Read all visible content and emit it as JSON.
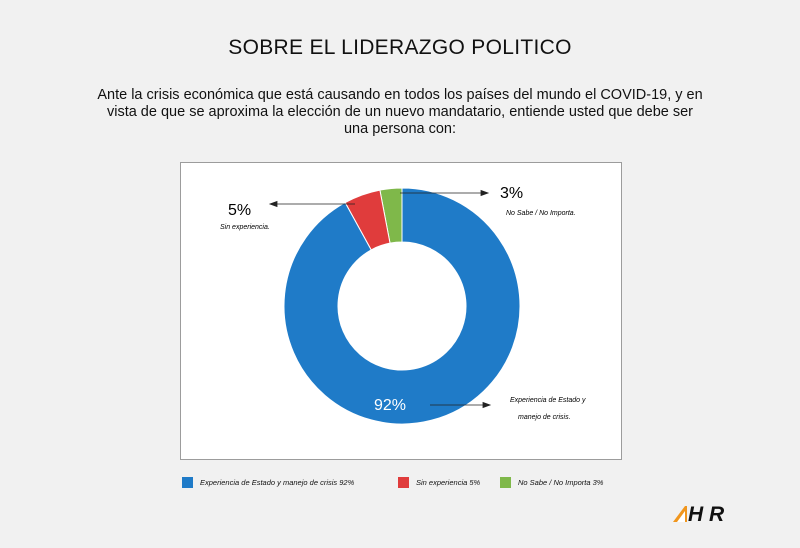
{
  "title": "SOBRE EL LIDERAZGO POLITICO",
  "question_lines": [
    "Ante la crisis económica que está causando en todos los países del  mundo el COVID-19,  y en",
    "vista de que se aproxima la elección de un  nuevo mandatario, entiende usted que debe ser",
    "una persona con:"
  ],
  "logo_text": "H R",
  "chart_data": {
    "type": "pie",
    "donut": true,
    "categories": [
      "Experiencia de Estado y manejo de crisis",
      "Sin experiencia",
      "No Sabe / No Importa"
    ],
    "values": [
      92,
      5,
      3
    ],
    "colors": [
      "#1f7bc8",
      "#e03c3c",
      "#7fb84a"
    ],
    "value_labels": [
      "92%",
      "5%",
      "3%"
    ],
    "slice_labels": [
      "Experiencia de Estado y manejo de crisis.",
      "Sin experiencia.",
      "No Sabe / No Importa."
    ],
    "legend": [
      "Experiencia de Estado y manejo de crisis  92%",
      "Sin experiencia 5%",
      "No Sabe / No Importa 3%"
    ],
    "legend_position": "bottom"
  }
}
